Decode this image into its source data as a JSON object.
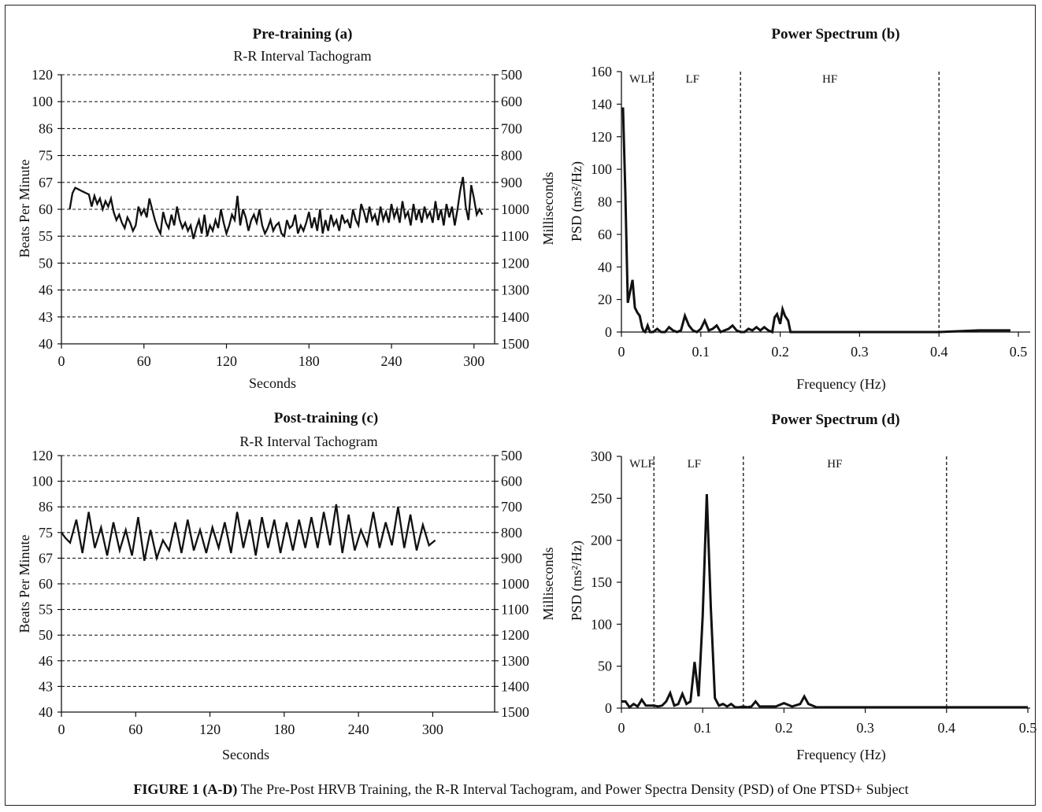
{
  "caption": {
    "label": "FIGURE 1 (A-D)",
    "text": "The Pre-Post HRVB Training, the R-R Interval Tachogram, and Power Spectra Density (PSD) of One PTSD+ Subject"
  },
  "chart_data": [
    {
      "id": "a",
      "type": "line",
      "title": "Pre-training (a)",
      "subtitle": "R-R Interval Tachogram",
      "xlabel": "Seconds",
      "ylabel": "Beats Per Minute",
      "ylabel_right": "Milliseconds",
      "xlim": [
        0,
        330
      ],
      "xticks": [
        "0",
        "60",
        "120",
        "180",
        "240",
        "300"
      ],
      "yticks_left": [
        "120",
        "100",
        "86",
        "75",
        "67",
        "60",
        "55",
        "50",
        "46",
        "43",
        "40"
      ],
      "yticks_right": [
        "500",
        "600",
        "700",
        "800",
        "900",
        "1000",
        "1100",
        "1200",
        "1300",
        "1400",
        "1500"
      ],
      "ylim_ms": [
        500,
        1500
      ],
      "grid": "dashed horizontal",
      "x": [
        6,
        8,
        10,
        12,
        14,
        16,
        18,
        20,
        22,
        24,
        26,
        28,
        30,
        32,
        34,
        36,
        38,
        40,
        42,
        44,
        46,
        48,
        50,
        52,
        54,
        56,
        58,
        60,
        62,
        64,
        66,
        68,
        70,
        72,
        74,
        76,
        78,
        80,
        82,
        84,
        86,
        88,
        90,
        92,
        94,
        96,
        98,
        100,
        102,
        104,
        106,
        108,
        110,
        112,
        114,
        116,
        118,
        120,
        122,
        124,
        126,
        128,
        130,
        132,
        134,
        136,
        138,
        140,
        142,
        144,
        146,
        148,
        150,
        152,
        154,
        156,
        158,
        160,
        162,
        164,
        166,
        168,
        170,
        172,
        174,
        176,
        178,
        180,
        182,
        184,
        186,
        188,
        190,
        192,
        194,
        196,
        198,
        200,
        202,
        204,
        206,
        208,
        210,
        212,
        214,
        216,
        218,
        220,
        222,
        224,
        226,
        228,
        230,
        232,
        234,
        236,
        238,
        240,
        242,
        244,
        246,
        248,
        250,
        252,
        254,
        256,
        258,
        260,
        262,
        264,
        266,
        268,
        270,
        272,
        274,
        276,
        278,
        280,
        282,
        284,
        286,
        288,
        290,
        292,
        294,
        296,
        298,
        300,
        302,
        304,
        306
      ],
      "y_ms": [
        1000,
        940,
        920,
        925,
        930,
        935,
        940,
        945,
        990,
        950,
        980,
        960,
        1000,
        970,
        990,
        960,
        1010,
        1040,
        1020,
        1050,
        1070,
        1030,
        1050,
        1080,
        1060,
        990,
        1020,
        1000,
        1030,
        960,
        1000,
        1040,
        1070,
        1090,
        1010,
        1050,
        1070,
        1020,
        1060,
        990,
        1040,
        1070,
        1050,
        1080,
        1060,
        1110,
        1070,
        1040,
        1090,
        1020,
        1100,
        1060,
        1080,
        1040,
        1070,
        1000,
        1050,
        1090,
        1060,
        1020,
        1040,
        950,
        1060,
        1000,
        1030,
        1080,
        1040,
        1020,
        1050,
        1000,
        1060,
        1090,
        1070,
        1040,
        1080,
        1060,
        1050,
        1090,
        1100,
        1040,
        1070,
        1060,
        1020,
        1090,
        1060,
        1080,
        1050,
        1010,
        1070,
        1030,
        1080,
        1000,
        1090,
        1040,
        1080,
        1020,
        1060,
        1040,
        1080,
        1020,
        1050,
        1040,
        1070,
        1000,
        1040,
        1060,
        980,
        1010,
        1050,
        990,
        1040,
        1020,
        1060,
        990,
        1040,
        1010,
        1050,
        980,
        1030,
        1000,
        1050,
        970,
        1030,
        1010,
        1060,
        980,
        1040,
        1000,
        1050,
        990,
        1030,
        1010,
        1050,
        970,
        1040,
        1000,
        1060,
        980,
        1030,
        990,
        1060,
        1000,
        930,
        880,
        990,
        1040,
        910,
        960,
        1020,
        1000,
        1020
      ]
    },
    {
      "id": "b",
      "type": "line",
      "title": "Power Spectrum (b)",
      "xlabel": "Frequency (Hz)",
      "ylabel": "PSD (ms²/Hz)",
      "xlim": [
        0,
        0.5
      ],
      "ylim": [
        0,
        160
      ],
      "xticks": [
        "0",
        "0.1",
        "0.2",
        "0.3",
        "0.4",
        "0.5"
      ],
      "yticks": [
        "0",
        "20",
        "40",
        "60",
        "80",
        "100",
        "120",
        "140",
        "160"
      ],
      "band_lines": [
        0.04,
        0.15,
        0.4
      ],
      "band_labels": [
        "WLF",
        "LF",
        "HF"
      ],
      "x": [
        0.002,
        0.005,
        0.008,
        0.011,
        0.014,
        0.017,
        0.02,
        0.023,
        0.026,
        0.028,
        0.03,
        0.033,
        0.036,
        0.04,
        0.045,
        0.05,
        0.055,
        0.06,
        0.065,
        0.07,
        0.075,
        0.08,
        0.085,
        0.09,
        0.095,
        0.1,
        0.105,
        0.11,
        0.115,
        0.12,
        0.125,
        0.13,
        0.135,
        0.14,
        0.145,
        0.15,
        0.155,
        0.16,
        0.165,
        0.17,
        0.175,
        0.18,
        0.185,
        0.19,
        0.193,
        0.196,
        0.2,
        0.203,
        0.206,
        0.21,
        0.213,
        0.215,
        0.25,
        0.3,
        0.35,
        0.4,
        0.45,
        0.49
      ],
      "y": [
        138,
        85,
        18,
        25,
        32,
        15,
        12,
        10,
        3,
        0.5,
        0,
        4,
        0,
        0,
        2,
        0,
        0,
        3,
        1,
        0,
        1,
        10,
        4,
        1,
        0,
        2,
        7,
        1,
        2,
        4,
        0,
        1,
        2,
        4,
        1,
        0,
        0,
        2,
        1,
        3,
        1,
        3,
        1,
        0,
        9,
        11,
        5,
        14,
        10,
        7,
        0,
        0,
        0,
        0,
        0,
        0,
        1,
        1
      ]
    },
    {
      "id": "c",
      "type": "line",
      "title": "Post-training (c)",
      "subtitle": "R-R Interval Tachogram",
      "xlabel": "Seconds",
      "ylabel": "Beats Per Minute",
      "ylabel_right": "Milliseconds",
      "xlim": [
        0,
        350
      ],
      "xticks": [
        "0",
        "60",
        "120",
        "180",
        "240",
        "300"
      ],
      "yticks_left": [
        "120",
        "100",
        "86",
        "75",
        "67",
        "60",
        "55",
        "50",
        "46",
        "43",
        "40"
      ],
      "yticks_right": [
        "500",
        "600",
        "700",
        "800",
        "900",
        "1000",
        "1100",
        "1200",
        "1300",
        "1400",
        "1500"
      ],
      "ylim_ms": [
        500,
        1500
      ],
      "grid": "dashed horizontal",
      "x": [
        0,
        3,
        7,
        12,
        17,
        22,
        27,
        32,
        37,
        42,
        47,
        52,
        57,
        62,
        67,
        72,
        77,
        82,
        87,
        92,
        97,
        102,
        107,
        112,
        117,
        122,
        127,
        132,
        137,
        142,
        147,
        152,
        157,
        162,
        167,
        172,
        177,
        182,
        187,
        192,
        197,
        202,
        207,
        212,
        217,
        222,
        227,
        232,
        237,
        242,
        247,
        252,
        257,
        262,
        267,
        272,
        277,
        282,
        287,
        292,
        297,
        302
      ],
      "y_ms": [
        800,
        820,
        840,
        750,
        880,
        720,
        860,
        780,
        890,
        760,
        870,
        790,
        890,
        740,
        910,
        790,
        900,
        830,
        870,
        760,
        880,
        750,
        870,
        790,
        880,
        780,
        860,
        760,
        880,
        720,
        860,
        750,
        890,
        740,
        860,
        750,
        880,
        760,
        870,
        750,
        860,
        740,
        860,
        720,
        850,
        690,
        880,
        730,
        870,
        790,
        850,
        720,
        860,
        760,
        850,
        700,
        860,
        730,
        870,
        770,
        850,
        830
      ]
    },
    {
      "id": "d",
      "type": "line",
      "title": "Power Spectrum (d)",
      "xlabel": "Frequency (Hz)",
      "ylabel": "PSD (ms²/Hz)",
      "xlim": [
        0,
        0.5
      ],
      "ylim": [
        0,
        300
      ],
      "xticks": [
        "0",
        "0.1",
        "0.2",
        "0.3",
        "0.4",
        "0.5"
      ],
      "yticks": [
        "0",
        "50",
        "100",
        "150",
        "200",
        "250",
        "300"
      ],
      "band_lines": [
        0.04,
        0.15,
        0.4
      ],
      "band_labels": [
        "WLF",
        "LF",
        "HF"
      ],
      "x": [
        0,
        0.005,
        0.01,
        0.015,
        0.02,
        0.025,
        0.03,
        0.035,
        0.04,
        0.045,
        0.05,
        0.055,
        0.06,
        0.065,
        0.07,
        0.075,
        0.08,
        0.085,
        0.09,
        0.095,
        0.1,
        0.105,
        0.11,
        0.115,
        0.12,
        0.125,
        0.13,
        0.135,
        0.14,
        0.145,
        0.15,
        0.155,
        0.16,
        0.165,
        0.17,
        0.18,
        0.19,
        0.2,
        0.21,
        0.22,
        0.225,
        0.23,
        0.24,
        0.3,
        0.35,
        0.4,
        0.45,
        0.5
      ],
      "y": [
        8,
        8,
        1,
        5,
        2,
        10,
        3,
        3,
        3,
        2,
        3,
        8,
        18,
        3,
        5,
        17,
        5,
        8,
        55,
        14,
        110,
        255,
        120,
        12,
        3,
        5,
        2,
        5,
        1,
        1,
        2,
        1,
        2,
        8,
        2,
        2,
        2,
        6,
        2,
        5,
        14,
        5,
        1,
        1,
        1,
        1,
        1,
        1
      ]
    }
  ]
}
